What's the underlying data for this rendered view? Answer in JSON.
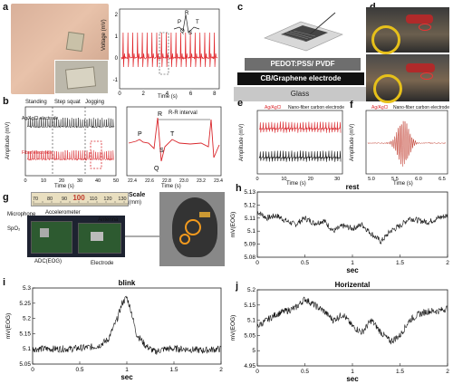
{
  "panels": {
    "a": {
      "label": "a",
      "chart": {
        "ylabel": "Voltage (mV)",
        "xlabel": "Time (s)",
        "xticks": [
          "0",
          "2",
          "4",
          "6",
          "8"
        ],
        "yticks": [
          "-1",
          "0",
          "1",
          "2"
        ],
        "peaks": [
          "R",
          "P",
          "T",
          "Q",
          "S"
        ]
      },
      "trace_color": "#e0262b"
    },
    "b": {
      "label": "b",
      "sections": [
        "Standing",
        "Step squat",
        "Jogging"
      ],
      "ylabel": "Amplitude (mV)",
      "xlabel": "Time (s)",
      "xticks": [
        "0",
        "10",
        "20",
        "30",
        "40",
        "50"
      ],
      "legend_top": "Ag/AgCl electrode",
      "legend_bottom": "Fiber electrode",
      "zoom": {
        "interval": "R-R interval",
        "peaks": [
          "P",
          "R",
          "S",
          "T",
          "Q"
        ],
        "xlabel": "Time (s)",
        "xticks": [
          "22.4",
          "22.6",
          "22.8",
          "23.0",
          "23.2",
          "23.4"
        ]
      }
    },
    "c": {
      "label": "c",
      "layers": [
        "PEDOT:PSS/ PVDF",
        "CB/Graphene electrode",
        "Glass"
      ]
    },
    "d": {
      "label": "d"
    },
    "e": {
      "label": "e",
      "legend": [
        "Ag/AgCl",
        "Nano-fiber carbon electrode"
      ],
      "ylabel": "Amplitude (mV)",
      "xlabel": "Time (s)",
      "xticks": [
        "0",
        "10",
        "20",
        "30"
      ]
    },
    "f": {
      "label": "f",
      "legend": [
        "Ag/AgCl",
        "Nano-fiber carbon electrode"
      ],
      "ylabel": "Amplitude (mV)",
      "xlabel": "Time (s)",
      "xticks": [
        "5.0",
        "5.5",
        "6.0",
        "6.5"
      ]
    },
    "g": {
      "label": "g",
      "scale_label": "Scale",
      "scale_unit": "(mm)",
      "ruler_numbers": [
        "70",
        "80",
        "90",
        "100",
        "110",
        "120",
        "130"
      ],
      "labels": [
        "Microphone",
        "Accelerometer",
        "Antenna",
        "SpO₂",
        "ADC(EOG)",
        "Electrode"
      ]
    },
    "h": {
      "label": "h"
    },
    "i": {
      "label": "i"
    },
    "j": {
      "label": "j"
    }
  },
  "chart_data": [
    {
      "type": "line",
      "title": "rest",
      "xlabel": "sec",
      "ylabel": "mV(EOG)",
      "xlim": [
        0,
        2
      ],
      "ylim": [
        5.08,
        5.13
      ],
      "xticks": [
        "0",
        "0.5",
        "1",
        "1.5",
        "2"
      ],
      "yticks": [
        "5.08",
        "5.09",
        "5.1",
        "5.11",
        "5.12",
        "5.13"
      ],
      "x": [
        0,
        0.1,
        0.2,
        0.3,
        0.4,
        0.5,
        0.6,
        0.7,
        0.8,
        0.9,
        1.0,
        1.1,
        1.2,
        1.3,
        1.4,
        1.5,
        1.6,
        1.7,
        1.8,
        1.9,
        2.0
      ],
      "y": [
        5.115,
        5.11,
        5.112,
        5.108,
        5.105,
        5.11,
        5.106,
        5.108,
        5.1,
        5.104,
        5.102,
        5.105,
        5.098,
        5.092,
        5.1,
        5.104,
        5.11,
        5.108,
        5.107,
        5.11,
        5.112
      ]
    },
    {
      "type": "line",
      "title": "blink",
      "xlabel": "sec",
      "ylabel": "mV(EOG)",
      "xlim": [
        0,
        2
      ],
      "ylim": [
        5.05,
        5.3
      ],
      "xticks": [
        "0",
        "0.5",
        "1",
        "1.5",
        "2"
      ],
      "yticks": [
        "5.05",
        "5.1",
        "5.15",
        "5.2",
        "5.25",
        "5.3"
      ],
      "x": [
        0,
        0.2,
        0.4,
        0.6,
        0.7,
        0.8,
        0.9,
        0.95,
        1.0,
        1.05,
        1.1,
        1.2,
        1.3,
        1.4,
        1.6,
        1.8,
        2.0
      ],
      "y": [
        5.1,
        5.1,
        5.1,
        5.105,
        5.11,
        5.13,
        5.2,
        5.25,
        5.27,
        5.22,
        5.15,
        5.11,
        5.09,
        5.1,
        5.1,
        5.095,
        5.1
      ]
    },
    {
      "type": "line",
      "title": "Horizental",
      "xlabel": "sec",
      "ylabel": "mV(EOG)",
      "xlim": [
        0,
        2
      ],
      "ylim": [
        4.95,
        5.2
      ],
      "xticks": [
        "0",
        "0.5",
        "1",
        "1.5",
        "2"
      ],
      "yticks": [
        "4.95",
        "5",
        "5.05",
        "5.1",
        "5.15",
        "5.2"
      ],
      "x": [
        0,
        0.1,
        0.2,
        0.3,
        0.4,
        0.5,
        0.6,
        0.7,
        0.8,
        0.9,
        1.0,
        1.1,
        1.2,
        1.3,
        1.4,
        1.5,
        1.6,
        1.7,
        1.8,
        1.9,
        2.0
      ],
      "y": [
        5.08,
        5.1,
        5.12,
        5.13,
        5.14,
        5.17,
        5.15,
        5.13,
        5.1,
        5.12,
        5.08,
        5.06,
        5.1,
        5.06,
        5.03,
        5.05,
        5.1,
        5.12,
        5.13,
        5.13,
        5.14
      ]
    }
  ]
}
